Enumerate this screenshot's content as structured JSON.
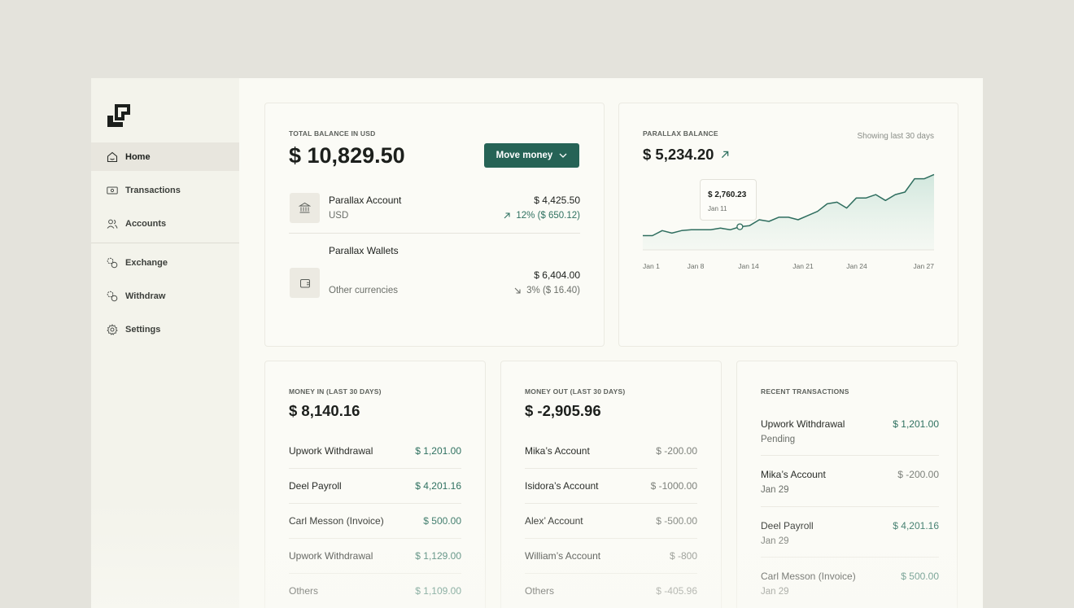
{
  "sidebar": {
    "items": [
      {
        "label": "Home",
        "icon": "home-icon"
      },
      {
        "label": "Transactions",
        "icon": "cash-icon"
      },
      {
        "label": "Accounts",
        "icon": "users-icon"
      },
      {
        "label": "Exchange",
        "icon": "exchange-icon"
      },
      {
        "label": "Withdraw",
        "icon": "withdraw-icon"
      },
      {
        "label": "Settings",
        "icon": "gear-icon"
      }
    ]
  },
  "balance": {
    "caption": "TOTAL BALANCE IN USD",
    "total": "$ 10,829.50",
    "move_label": "Move money",
    "accounts": [
      {
        "name": "Parallax Account",
        "sub": "USD",
        "amount": "$ 4,425.50",
        "change": "12%  ($ 650.12)",
        "direction": "up",
        "icon": "bank-icon"
      },
      {
        "name": "Parallax Wallets",
        "sub": "Other currencies",
        "amount": "$ 6,404.00",
        "change": "3%  ($ 16.40)",
        "direction": "down",
        "icon": "wallet-icon"
      }
    ]
  },
  "parallax": {
    "caption": "PARALLAX BALANCE",
    "value": "$ 5,234.20",
    "range_note": "Showing last 30 days",
    "tooltip": {
      "value": "$ 2,760.23",
      "date": "Jan 11"
    }
  },
  "chart_data": {
    "type": "area",
    "x_ticks": [
      "Jan 1",
      "Jan 8",
      "Jan 14",
      "Jan 21",
      "Jan 24",
      "Jan 27"
    ],
    "values": [
      1700,
      1700,
      2300,
      2000,
      2300,
      2400,
      2400,
      2400,
      2600,
      2400,
      2760,
      2900,
      3600,
      3400,
      3900,
      3900,
      3600,
      4100,
      4600,
      5500,
      5700,
      5000,
      6200,
      6200,
      6600,
      5900,
      6600,
      6900,
      8500,
      8500,
      9000
    ],
    "highlight_index": 10,
    "ylim": [
      0,
      10500
    ],
    "colors": {
      "line": "#2f6e5f",
      "fill": "#d2e8df"
    }
  },
  "money_in": {
    "caption": "MONEY IN (LAST 30 DAYS)",
    "total": "$ 8,140.16",
    "rows": [
      {
        "name": "Upwork Withdrawal",
        "amount": "$ 1,201.00"
      },
      {
        "name": "Deel Payroll",
        "amount": "$ 4,201.16"
      },
      {
        "name": "Carl Messon (Invoice)",
        "amount": "$ 500.00"
      },
      {
        "name": "Upwork Withdrawal",
        "amount": "$ 1,129.00"
      },
      {
        "name": "Others",
        "amount": "$ 1,109.00"
      }
    ]
  },
  "money_out": {
    "caption": "MONEY OUT (LAST 30 DAYS)",
    "total": "$ -2,905.96",
    "rows": [
      {
        "name": "Mika’s Account",
        "amount": "$ -200.00"
      },
      {
        "name": "Isidora’s Account",
        "amount": "$ -1000.00"
      },
      {
        "name": "Alex’ Account",
        "amount": "$ -500.00"
      },
      {
        "name": "William’s Account",
        "amount": "$ -800"
      },
      {
        "name": "Others",
        "amount": "$ -405.96"
      }
    ]
  },
  "recent": {
    "caption": "RECENT TRANSACTIONS",
    "rows": [
      {
        "name": "Upwork Withdrawal",
        "sub": "Pending",
        "amount": "$ 1,201.00",
        "positive": true
      },
      {
        "name": "Mika’s Account",
        "sub": "Jan 29",
        "amount": "$ -200.00",
        "positive": false
      },
      {
        "name": "Deel Payroll",
        "sub": "Jan 29",
        "amount": "$ 4,201.16",
        "positive": true
      },
      {
        "name": "Carl Messon (Invoice)",
        "sub": "Jan 29",
        "amount": "$ 500.00",
        "positive": true
      }
    ]
  }
}
